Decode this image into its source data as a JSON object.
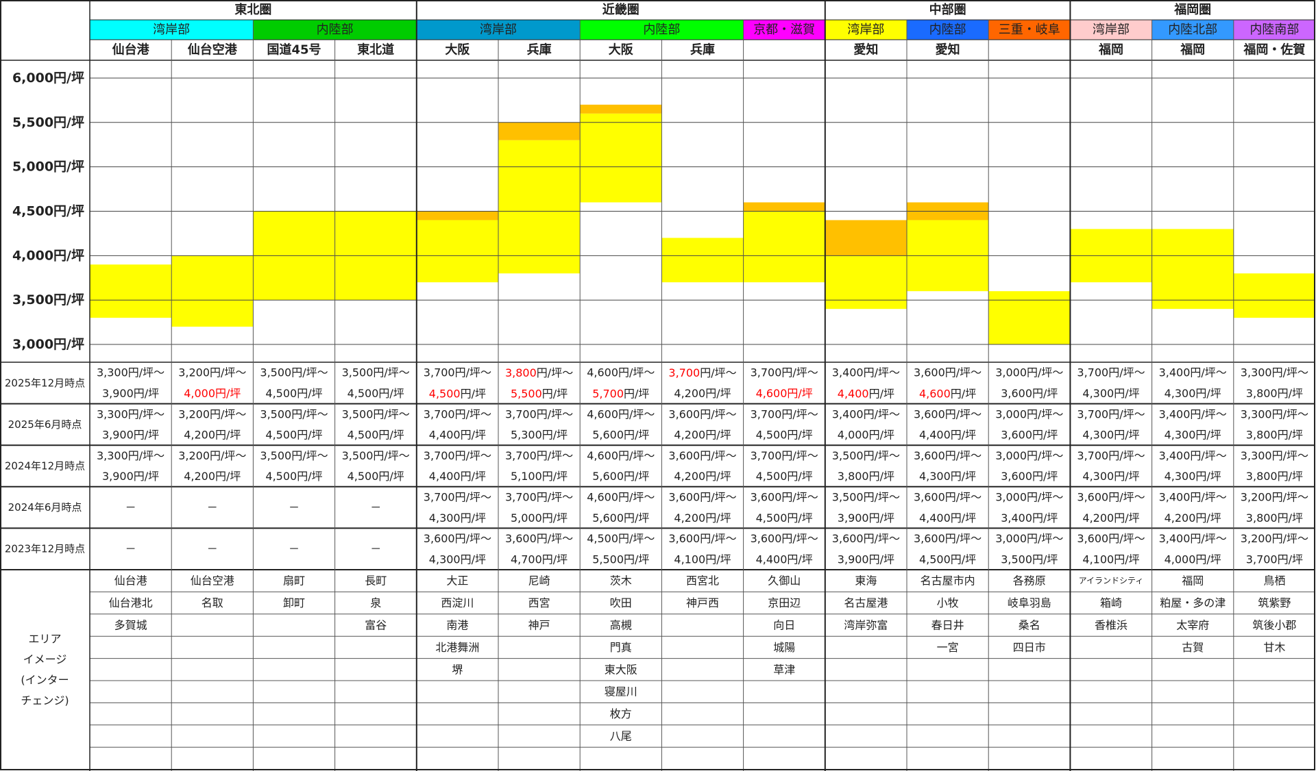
{
  "chart_data": {
    "type": "range_bar",
    "ylim": [
      2800,
      6200
    ],
    "yticks": [
      {
        "value": 3000,
        "label": "3,000円/坪"
      },
      {
        "value": 3500,
        "label": "3,500円/坪"
      },
      {
        "value": 4000,
        "label": "4,000円/坪"
      },
      {
        "value": 4500,
        "label": "4,500円/坪"
      },
      {
        "value": 5000,
        "label": "5,000円/坪"
      },
      {
        "value": 5500,
        "label": "5,500円/坪"
      },
      {
        "value": 6000,
        "label": "6,000円/坪"
      }
    ],
    "grid": true,
    "colors": {
      "range": "#ffff00",
      "increase": "#ffc000",
      "highlight": "#ff0000"
    }
  },
  "regions": [
    {
      "name": "東北圏",
      "span": 4
    },
    {
      "name": "近畿圏",
      "span": 5
    },
    {
      "name": "中部圏",
      "span": 3
    },
    {
      "name": "福岡圏",
      "span": 3
    }
  ],
  "subregions": [
    {
      "name": "湾岸部",
      "color": "#00ffff",
      "span": 2
    },
    {
      "name": "内陸部",
      "color": "#00cc00",
      "span": 2
    },
    {
      "name": "湾岸部",
      "color": "#0099cc",
      "span": 2
    },
    {
      "name": "内陸部",
      "color": "#00ff00",
      "span": 2
    },
    {
      "name": "京都・滋賀",
      "color": "#ff00ff",
      "span": 1
    },
    {
      "name": "湾岸部",
      "color": "#ffff00",
      "span": 1
    },
    {
      "name": "内陸部",
      "color": "#1a6bff",
      "span": 1
    },
    {
      "name": "三重・岐阜",
      "color": "#ff6600",
      "span": 1
    },
    {
      "name": "湾岸部",
      "color": "#ffcccc",
      "span": 1
    },
    {
      "name": "内陸北部",
      "color": "#3399ff",
      "span": 1
    },
    {
      "name": "内陸南部",
      "color": "#cc66ff",
      "span": 1
    }
  ],
  "period_labels": [
    "2025年12月時点",
    "2025年6月時点",
    "2024年12月時点",
    "2024年6月時点",
    "2023年12月時点"
  ],
  "area_label": [
    "エリア",
    "イメージ",
    "(インター",
    "チェンジ)"
  ],
  "columns": [
    {
      "name": "仙台港",
      "periods": [
        {
          "min": {
            "value": 3300,
            "label": "3,300円/坪～"
          },
          "max": {
            "value": 3900,
            "label": "3,900円/坪"
          }
        },
        {
          "min": {
            "value": 3300,
            "label": "3,300円/坪～"
          },
          "max": {
            "value": 3900,
            "label": "3,900円/坪"
          }
        },
        {
          "min": {
            "value": 3300,
            "label": "3,300円/坪～"
          },
          "max": {
            "value": 3900,
            "label": "3,900円/坪"
          }
        },
        {
          "text": "－"
        },
        {
          "text": "－"
        }
      ],
      "areas": [
        "仙台港",
        "仙台港北",
        "多賀城"
      ]
    },
    {
      "name": "仙台空港",
      "periods": [
        {
          "min": {
            "value": 3200,
            "label": "3,200円/坪～"
          },
          "max": {
            "value": 4000,
            "label": "4,000円/坪",
            "red": "all"
          }
        },
        {
          "min": {
            "value": 3200,
            "label": "3,200円/坪～"
          },
          "max": {
            "value": 4200,
            "label": "4,200円/坪"
          }
        },
        {
          "min": {
            "value": 3200,
            "label": "3,200円/坪～"
          },
          "max": {
            "value": 4200,
            "label": "4,200円/坪"
          }
        },
        {
          "text": "－"
        },
        {
          "text": "－"
        }
      ],
      "areas": [
        "仙台空港",
        "名取"
      ]
    },
    {
      "name": "国道45号",
      "periods": [
        {
          "min": {
            "value": 3500,
            "label": "3,500円/坪～"
          },
          "max": {
            "value": 4500,
            "label": "4,500円/坪"
          }
        },
        {
          "min": {
            "value": 3500,
            "label": "3,500円/坪～"
          },
          "max": {
            "value": 4500,
            "label": "4,500円/坪"
          }
        },
        {
          "min": {
            "value": 3500,
            "label": "3,500円/坪～"
          },
          "max": {
            "value": 4500,
            "label": "4,500円/坪"
          }
        },
        {
          "text": "－"
        },
        {
          "text": "－"
        }
      ],
      "areas": [
        "扇町",
        "卸町"
      ]
    },
    {
      "name": "東北道",
      "periods": [
        {
          "min": {
            "value": 3500,
            "label": "3,500円/坪～"
          },
          "max": {
            "value": 4500,
            "label": "4,500円/坪"
          }
        },
        {
          "min": {
            "value": 3500,
            "label": "3,500円/坪～"
          },
          "max": {
            "value": 4500,
            "label": "4,500円/坪"
          }
        },
        {
          "min": {
            "value": 3500,
            "label": "3,500円/坪～"
          },
          "max": {
            "value": 4500,
            "label": "4,500円/坪"
          }
        },
        {
          "text": "－"
        },
        {
          "text": "－"
        }
      ],
      "areas": [
        "長町",
        "泉",
        "富谷"
      ]
    },
    {
      "name": "大阪",
      "periods": [
        {
          "min": {
            "value": 3700,
            "label": "3,700円/坪～"
          },
          "max": {
            "value": 4500,
            "label": "4,500円/坪",
            "red": "num"
          }
        },
        {
          "min": {
            "value": 3700,
            "label": "3,700円/坪～"
          },
          "max": {
            "value": 4400,
            "label": "4,400円/坪"
          }
        },
        {
          "min": {
            "value": 3700,
            "label": "3,700円/坪～"
          },
          "max": {
            "value": 4400,
            "label": "4,400円/坪"
          }
        },
        {
          "min": {
            "value": 3700,
            "label": "3,700円/坪～"
          },
          "max": {
            "value": 4300,
            "label": "4,300円/坪"
          }
        },
        {
          "min": {
            "value": 3600,
            "label": "3,600円/坪～"
          },
          "max": {
            "value": 4300,
            "label": "4,300円/坪"
          }
        }
      ],
      "areas": [
        "大正",
        "西淀川",
        "南港",
        "北港舞洲",
        "堺"
      ]
    },
    {
      "name": "兵庫",
      "periods": [
        {
          "min": {
            "value": 3800,
            "label": "3,800円/坪～",
            "red": "num"
          },
          "max": {
            "value": 5500,
            "label": "5,500円/坪",
            "red": "num"
          }
        },
        {
          "min": {
            "value": 3700,
            "label": "3,700円/坪～"
          },
          "max": {
            "value": 5300,
            "label": "5,300円/坪"
          }
        },
        {
          "min": {
            "value": 3700,
            "label": "3,700円/坪～"
          },
          "max": {
            "value": 5100,
            "label": "5,100円/坪"
          }
        },
        {
          "min": {
            "value": 3700,
            "label": "3,700円/坪～"
          },
          "max": {
            "value": 5000,
            "label": "5,000円/坪"
          }
        },
        {
          "min": {
            "value": 3600,
            "label": "3,600円/坪～"
          },
          "max": {
            "value": 4700,
            "label": "4,700円/坪"
          }
        }
      ],
      "areas": [
        "尼崎",
        "西宮",
        "神戸"
      ]
    },
    {
      "name": "大阪",
      "periods": [
        {
          "min": {
            "value": 4600,
            "label": "4,600円/坪～"
          },
          "max": {
            "value": 5700,
            "label": "5,700円/坪",
            "red": "num"
          }
        },
        {
          "min": {
            "value": 4600,
            "label": "4,600円/坪～"
          },
          "max": {
            "value": 5600,
            "label": "5,600円/坪"
          }
        },
        {
          "min": {
            "value": 4600,
            "label": "4,600円/坪～"
          },
          "max": {
            "value": 5600,
            "label": "5,600円/坪"
          }
        },
        {
          "min": {
            "value": 4600,
            "label": "4,600円/坪～"
          },
          "max": {
            "value": 5600,
            "label": "5,600円/坪"
          }
        },
        {
          "min": {
            "value": 4500,
            "label": "4,500円/坪～"
          },
          "max": {
            "value": 5500,
            "label": "5,500円/坪"
          }
        }
      ],
      "areas": [
        "茨木",
        "吹田",
        "高槻",
        "門真",
        "東大阪",
        "寝屋川",
        "枚方",
        "八尾"
      ]
    },
    {
      "name": "兵庫",
      "periods": [
        {
          "min": {
            "value": 3700,
            "label": "3,700円/坪～",
            "red": "num"
          },
          "max": {
            "value": 4200,
            "label": "4,200円/坪"
          }
        },
        {
          "min": {
            "value": 3600,
            "label": "3,600円/坪～"
          },
          "max": {
            "value": 4200,
            "label": "4,200円/坪"
          }
        },
        {
          "min": {
            "value": 3600,
            "label": "3,600円/坪～"
          },
          "max": {
            "value": 4200,
            "label": "4,200円/坪"
          }
        },
        {
          "min": {
            "value": 3600,
            "label": "3,600円/坪～"
          },
          "max": {
            "value": 4200,
            "label": "4,200円/坪"
          }
        },
        {
          "min": {
            "value": 3600,
            "label": "3,600円/坪～"
          },
          "max": {
            "value": 4100,
            "label": "4,100円/坪"
          }
        }
      ],
      "areas": [
        "西宮北",
        "神戸西"
      ]
    },
    {
      "name": null,
      "periods": [
        {
          "min": {
            "value": 3700,
            "label": "3,700円/坪～"
          },
          "max": {
            "value": 4600,
            "label": "4,600円/坪",
            "red": "all"
          }
        },
        {
          "min": {
            "value": 3700,
            "label": "3,700円/坪～"
          },
          "max": {
            "value": 4500,
            "label": "4,500円/坪"
          }
        },
        {
          "min": {
            "value": 3700,
            "label": "3,700円/坪～"
          },
          "max": {
            "value": 4500,
            "label": "4,500円/坪"
          }
        },
        {
          "min": {
            "value": 3600,
            "label": "3,600円/坪～"
          },
          "max": {
            "value": 4500,
            "label": "4,500円/坪"
          }
        },
        {
          "min": {
            "value": 3600,
            "label": "3,600円/坪～"
          },
          "max": {
            "value": 4400,
            "label": "4,400円/坪"
          }
        }
      ],
      "areas": [
        "久御山",
        "京田辺",
        "向日",
        "城陽",
        "草津"
      ]
    },
    {
      "name": "愛知",
      "periods": [
        {
          "min": {
            "value": 3400,
            "label": "3,400円/坪～"
          },
          "max": {
            "value": 4400,
            "label": "4,400円/坪",
            "red": "num"
          }
        },
        {
          "min": {
            "value": 3400,
            "label": "3,400円/坪～"
          },
          "max": {
            "value": 4000,
            "label": "4,000円/坪"
          }
        },
        {
          "min": {
            "value": 3500,
            "label": "3,500円/坪～"
          },
          "max": {
            "value": 3800,
            "label": "3,800円/坪"
          }
        },
        {
          "min": {
            "value": 3500,
            "label": "3,500円/坪～"
          },
          "max": {
            "value": 3900,
            "label": "3,900円/坪"
          }
        },
        {
          "min": {
            "value": 3600,
            "label": "3,600円/坪～"
          },
          "max": {
            "value": 3900,
            "label": "3,900円/坪"
          }
        }
      ],
      "areas": [
        "東海",
        "名古屋港",
        "湾岸弥富"
      ]
    },
    {
      "name": "愛知",
      "periods": [
        {
          "min": {
            "value": 3600,
            "label": "3,600円/坪～"
          },
          "max": {
            "value": 4600,
            "label": "4,600円/坪",
            "red": "num"
          }
        },
        {
          "min": {
            "value": 3600,
            "label": "3,600円/坪～"
          },
          "max": {
            "value": 4400,
            "label": "4,400円/坪"
          }
        },
        {
          "min": {
            "value": 3600,
            "label": "3,600円/坪～"
          },
          "max": {
            "value": 4300,
            "label": "4,300円/坪"
          }
        },
        {
          "min": {
            "value": 3600,
            "label": "3,600円/坪～"
          },
          "max": {
            "value": 4400,
            "label": "4,400円/坪"
          }
        },
        {
          "min": {
            "value": 3600,
            "label": "3,600円/坪～"
          },
          "max": {
            "value": 4500,
            "label": "4,500円/坪"
          }
        }
      ],
      "areas": [
        "名古屋市内",
        "小牧",
        "春日井",
        "一宮"
      ]
    },
    {
      "name": null,
      "periods": [
        {
          "min": {
            "value": 3000,
            "label": "3,000円/坪～"
          },
          "max": {
            "value": 3600,
            "label": "3,600円/坪"
          }
        },
        {
          "min": {
            "value": 3000,
            "label": "3,000円/坪～"
          },
          "max": {
            "value": 3600,
            "label": "3,600円/坪"
          }
        },
        {
          "min": {
            "value": 3000,
            "label": "3,000円/坪～"
          },
          "max": {
            "value": 3600,
            "label": "3,600円/坪"
          }
        },
        {
          "min": {
            "value": 3000,
            "label": "3,000円/坪～"
          },
          "max": {
            "value": 3400,
            "label": "3,400円/坪"
          }
        },
        {
          "min": {
            "value": 3000,
            "label": "3,000円/坪～"
          },
          "max": {
            "value": 3500,
            "label": "3,500円/坪"
          }
        }
      ],
      "areas": [
        "各務原",
        "岐阜羽島",
        "桑名",
        "四日市"
      ]
    },
    {
      "name": "福岡",
      "periods": [
        {
          "min": {
            "value": 3700,
            "label": "3,700円/坪～"
          },
          "max": {
            "value": 4300,
            "label": "4,300円/坪"
          }
        },
        {
          "min": {
            "value": 3700,
            "label": "3,700円/坪～"
          },
          "max": {
            "value": 4300,
            "label": "4,300円/坪"
          }
        },
        {
          "min": {
            "value": 3700,
            "label": "3,700円/坪～"
          },
          "max": {
            "value": 4300,
            "label": "4,300円/坪"
          }
        },
        {
          "min": {
            "value": 3600,
            "label": "3,600円/坪～"
          },
          "max": {
            "value": 4200,
            "label": "4,200円/坪"
          }
        },
        {
          "min": {
            "value": 3600,
            "label": "3,600円/坪～"
          },
          "max": {
            "value": 4100,
            "label": "4,100円/坪"
          }
        }
      ],
      "areas": [
        "アイランドシティ",
        "箱崎",
        "香椎浜"
      ]
    },
    {
      "name": "福岡",
      "periods": [
        {
          "min": {
            "value": 3400,
            "label": "3,400円/坪～"
          },
          "max": {
            "value": 4300,
            "label": "4,300円/坪"
          }
        },
        {
          "min": {
            "value": 3400,
            "label": "3,400円/坪～"
          },
          "max": {
            "value": 4300,
            "label": "4,300円/坪"
          }
        },
        {
          "min": {
            "value": 3400,
            "label": "3,400円/坪～"
          },
          "max": {
            "value": 4300,
            "label": "4,300円/坪"
          }
        },
        {
          "min": {
            "value": 3400,
            "label": "3,400円/坪～"
          },
          "max": {
            "value": 4200,
            "label": "4,200円/坪"
          }
        },
        {
          "min": {
            "value": 3400,
            "label": "3,400円/坪～"
          },
          "max": {
            "value": 4000,
            "label": "4,000円/坪"
          }
        }
      ],
      "areas": [
        "福岡",
        "粕屋・多の津",
        "太宰府",
        "古賀"
      ]
    },
    {
      "name": "福岡・佐賀",
      "periods": [
        {
          "min": {
            "value": 3300,
            "label": "3,300円/坪～"
          },
          "max": {
            "value": 3800,
            "label": "3,800円/坪"
          }
        },
        {
          "min": {
            "value": 3300,
            "label": "3,300円/坪～"
          },
          "max": {
            "value": 3800,
            "label": "3,800円/坪"
          }
        },
        {
          "min": {
            "value": 3300,
            "label": "3,300円/坪～"
          },
          "max": {
            "value": 3800,
            "label": "3,800円/坪"
          }
        },
        {
          "min": {
            "value": 3200,
            "label": "3,200円/坪～"
          },
          "max": {
            "value": 3800,
            "label": "3,800円/坪"
          }
        },
        {
          "min": {
            "value": 3200,
            "label": "3,200円/坪～"
          },
          "max": {
            "value": 3700,
            "label": "3,700円/坪"
          }
        }
      ],
      "areas": [
        "鳥栖",
        "筑紫野",
        "筑後小郡",
        "甘木"
      ]
    }
  ]
}
